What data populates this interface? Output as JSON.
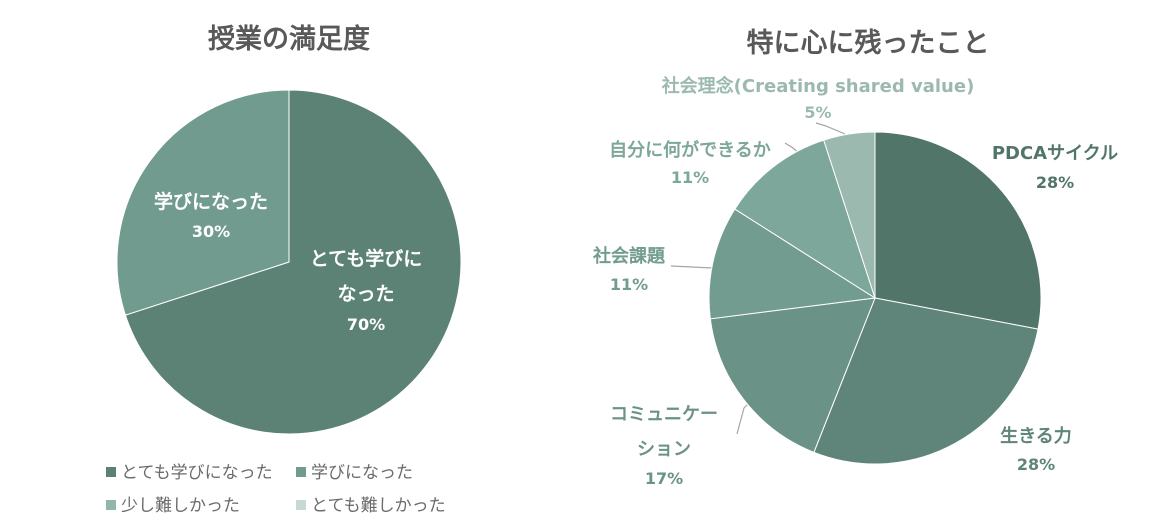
{
  "chart_data": [
    {
      "type": "pie",
      "title": "授業の満足度",
      "slices": [
        {
          "label": "とても学びになった",
          "value": 70,
          "pct_label": "70%",
          "color": "#5c8276"
        },
        {
          "label": "学びになった",
          "value": 30,
          "pct_label": "30%",
          "color": "#719b8f"
        },
        {
          "label": "少し難しかった",
          "value": 0,
          "pct_label": "",
          "color": "#93b5aa"
        },
        {
          "label": "とても難しかった",
          "value": 0,
          "pct_label": "",
          "color": "#c6d9d2"
        }
      ],
      "data_labels": [
        {
          "lines": [
            "学びになった"
          ],
          "pct": "30%"
        },
        {
          "lines": [
            "とても学びに",
            "なった"
          ],
          "pct": "70%"
        }
      ],
      "legend": [
        "とても学びになった",
        "学びになった",
        "少し難しかった",
        "とても難しかった"
      ],
      "legend_position": "bottom"
    },
    {
      "type": "pie",
      "title": "特に心に残ったこと",
      "slices": [
        {
          "label": "PDCAサイクル",
          "value": 28,
          "pct_label": "28%",
          "color": "#52756a"
        },
        {
          "label": "生きる力",
          "value": 28,
          "pct_label": "28%",
          "color": "#5f857a"
        },
        {
          "label": "コミュニケーション",
          "value": 17,
          "pct_label": "17%",
          "color": "#6a9286"
        },
        {
          "label": "社会課題",
          "value": 11,
          "pct_label": "11%",
          "color": "#739c90"
        },
        {
          "label": "自分に何ができるか",
          "value": 11,
          "pct_label": "11%",
          "color": "#7ea79b"
        },
        {
          "label": "社会理念(Creating shared value)",
          "value": 5,
          "pct_label": "5%",
          "color": "#9cb9b0"
        }
      ],
      "data_labels": [
        {
          "lines": [
            "PDCAサイクル"
          ],
          "pct": "28%"
        },
        {
          "lines": [
            "生きる力"
          ],
          "pct": "28%"
        },
        {
          "lines": [
            "コミュニケー",
            "ション"
          ],
          "pct": "17%"
        },
        {
          "lines": [
            "社会課題"
          ],
          "pct": "11%"
        },
        {
          "lines": [
            "自分に何ができるか"
          ],
          "pct": "11%"
        },
        {
          "lines": [
            "社会理念(Creating shared value)"
          ],
          "pct": "5%"
        }
      ]
    }
  ]
}
